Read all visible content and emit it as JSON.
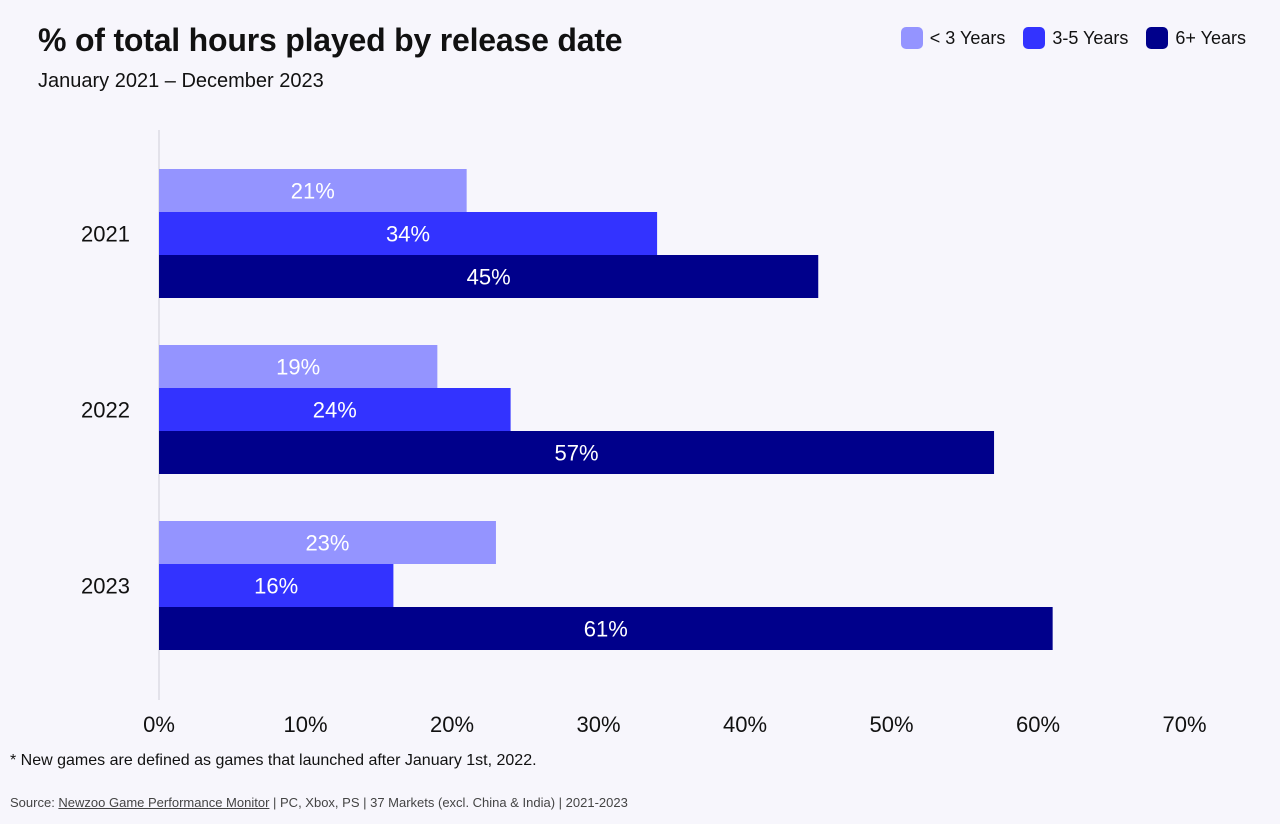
{
  "title": "% of total hours played by release date",
  "subtitle": "January 2021 – December 2023",
  "footnote": "* New games are defined as games that launched after January 1st, 2022.",
  "source": {
    "prefix": "Source: ",
    "link": "Newzoo Game Performance Monitor",
    "suffix": " | PC, Xbox, PS  | 37 Markets (excl. China & India) | 2021-2023"
  },
  "legend_position": "top-right",
  "chart_data": {
    "type": "bar",
    "orientation": "horizontal",
    "title": "% of total hours played by release date",
    "subtitle": "January 2021 – December 2023",
    "categories": [
      "2021",
      "2022",
      "2023"
    ],
    "series": [
      {
        "name": "< 3 Years",
        "color": "#9494ff",
        "values": [
          21,
          19,
          23
        ],
        "labels": [
          "21%",
          "19%",
          "23%"
        ]
      },
      {
        "name": "3-5 Years",
        "color": "#3333ff",
        "values": [
          34,
          24,
          16
        ],
        "labels": [
          "34%",
          "24%",
          "16%"
        ]
      },
      {
        "name": "6+ Years",
        "color": "#00008b",
        "values": [
          45,
          57,
          61
        ],
        "labels": [
          "45%",
          "57%",
          "61%"
        ]
      }
    ],
    "xlim": [
      0,
      70
    ],
    "xticks": [
      0,
      10,
      20,
      30,
      40,
      50,
      60,
      70
    ],
    "xtick_labels": [
      "0%",
      "10%",
      "20%",
      "30%",
      "40%",
      "50%",
      "60%",
      "70%"
    ],
    "grid": false,
    "legend": "top-right"
  }
}
